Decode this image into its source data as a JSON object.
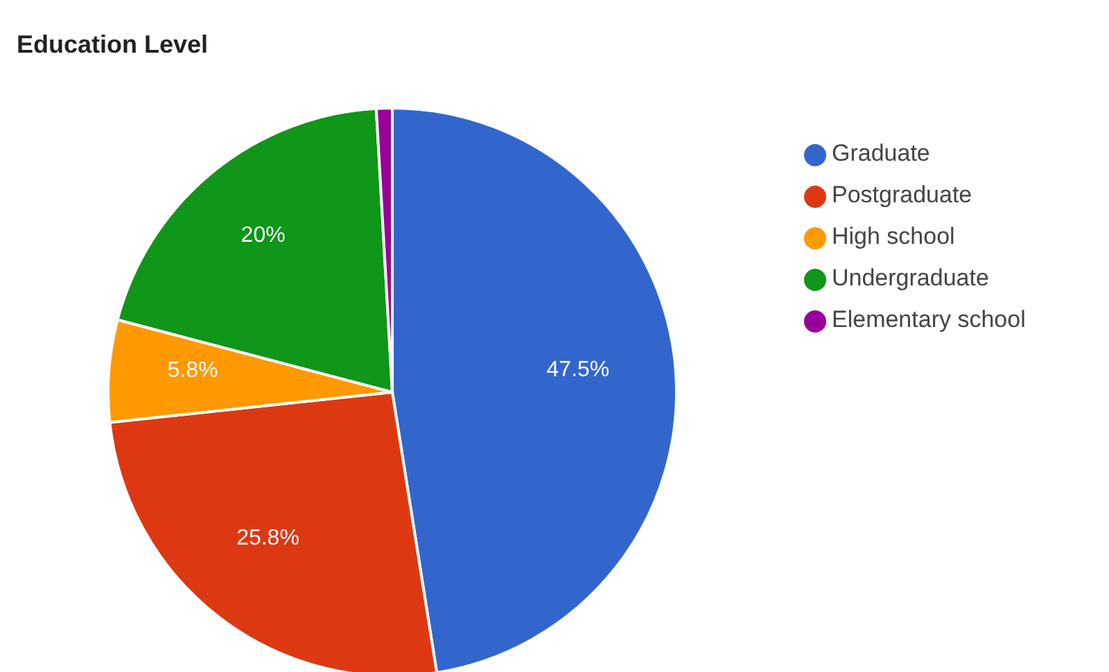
{
  "chart_data": {
    "type": "pie",
    "title": "Education Level",
    "categories": [
      "Graduate",
      "Postgraduate",
      "High school",
      "Undergraduate",
      "Elementary school"
    ],
    "values": [
      47.5,
      25.8,
      5.8,
      20,
      0.9
    ],
    "value_labels": [
      "47.5%",
      "25.8%",
      "5.8%",
      "20%",
      null
    ],
    "colors": [
      "#3366cc",
      "#dc3912",
      "#ff9900",
      "#109618",
      "#990099"
    ],
    "legend": "right"
  }
}
